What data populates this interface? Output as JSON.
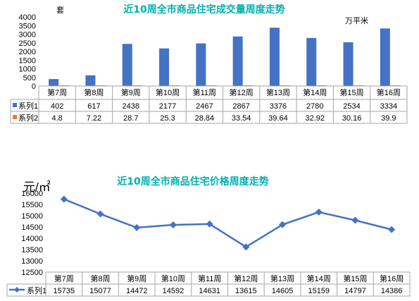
{
  "chart_data": [
    {
      "type": "bar",
      "title": "近10周全市商品住宅成交量周度走势",
      "ylabel": "套",
      "y2label": "万平米",
      "ylim": [
        0,
        4000
      ],
      "yticks": [
        0,
        500,
        1000,
        1500,
        2000,
        2500,
        3000,
        3500,
        4000
      ],
      "categories": [
        "第7周",
        "第8周",
        "第9周",
        "第10周",
        "第11周",
        "第12周",
        "第13周",
        "第14周",
        "第15周",
        "第16周"
      ],
      "series": [
        {
          "name": "系列1",
          "color": "#4472C4",
          "values": [
            402,
            617,
            2438,
            2177,
            2467,
            2867,
            3376,
            2780,
            2534,
            3334
          ],
          "labels": [
            "402",
            "617",
            "2438",
            "2177",
            "2467",
            "2867",
            "3376",
            "2780",
            "2534",
            "3334"
          ]
        },
        {
          "name": "系列2",
          "color": "#ED7D31",
          "values": [
            4.8,
            7.22,
            28.7,
            25.3,
            28.84,
            33.54,
            39.64,
            32.92,
            30.16,
            39.9
          ],
          "labels": [
            "4.8",
            "7.22",
            "28.7",
            "25.3",
            "28.84",
            "33.54",
            "39.64",
            "32.92",
            "30.16",
            "39.9"
          ]
        }
      ],
      "grid": false,
      "legend": "data-table"
    },
    {
      "type": "line",
      "title": "近10周全市商品住宅价格周度走势",
      "ylabel": "元/㎡",
      "ylim": [
        12500,
        16000
      ],
      "yticks": [
        12500,
        13000,
        13500,
        14000,
        14500,
        15000,
        15500,
        16000
      ],
      "categories": [
        "第7周",
        "第8周",
        "第9周",
        "第10周",
        "第11周",
        "第12周",
        "第13周",
        "第14周",
        "第15周",
        "第16周"
      ],
      "series": [
        {
          "name": "系列1",
          "color": "#4472C4",
          "values": [
            15735,
            15077,
            14472,
            14592,
            14631,
            13615,
            14605,
            15159,
            14797,
            14386
          ],
          "labels": [
            "15735",
            "15077",
            "14472",
            "14592",
            "14631",
            "13615",
            "14605",
            "15159",
            "14797",
            "14386"
          ]
        }
      ],
      "grid": false,
      "legend": "data-table"
    }
  ]
}
